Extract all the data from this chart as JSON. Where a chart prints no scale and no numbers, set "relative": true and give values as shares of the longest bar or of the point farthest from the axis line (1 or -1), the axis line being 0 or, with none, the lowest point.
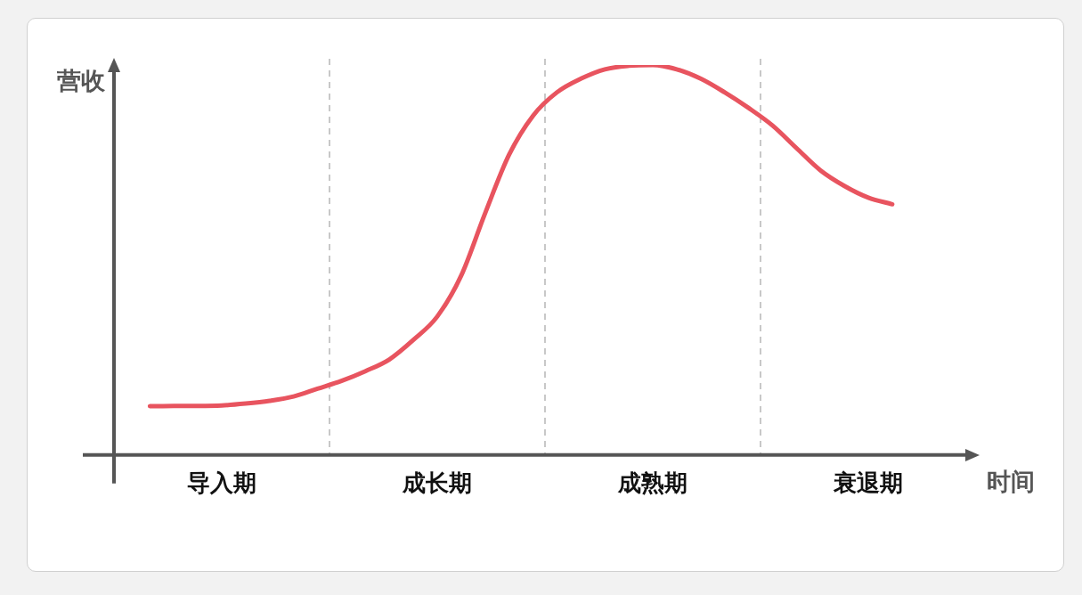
{
  "chart_data": {
    "type": "line",
    "relative": true,
    "xlabel": "时间",
    "ylabel": "营收",
    "categories": [
      null,
      null,
      null,
      null,
      "导入期",
      null,
      null,
      null,
      null,
      null,
      null,
      null,
      null,
      "成长期",
      null,
      null,
      null,
      null,
      null,
      null,
      null,
      null,
      "成熟期",
      null,
      null,
      null,
      null,
      null,
      null,
      null,
      null,
      "衰退期",
      null,
      null,
      null,
      null
    ],
    "series": [
      {
        "color": "#e8545f",
        "values": [
          null,
          0.125,
          0.126,
          0.126,
          0.127,
          0.132,
          0.139,
          0.15,
          0.17,
          0.19,
          0.215,
          0.245,
          0.295,
          0.355,
          0.46,
          0.62,
          0.77,
          0.87,
          0.93,
          0.965,
          0.989,
          0.998,
          1,
          0.989,
          0.965,
          0.93,
          0.89,
          0.845,
          0.787,
          0.73,
          0.69,
          0.66,
          0.643,
          null,
          null,
          null
        ]
      }
    ],
    "grid": "x",
    "legend": false,
    "marker": "none",
    "line_style": "solid"
  }
}
